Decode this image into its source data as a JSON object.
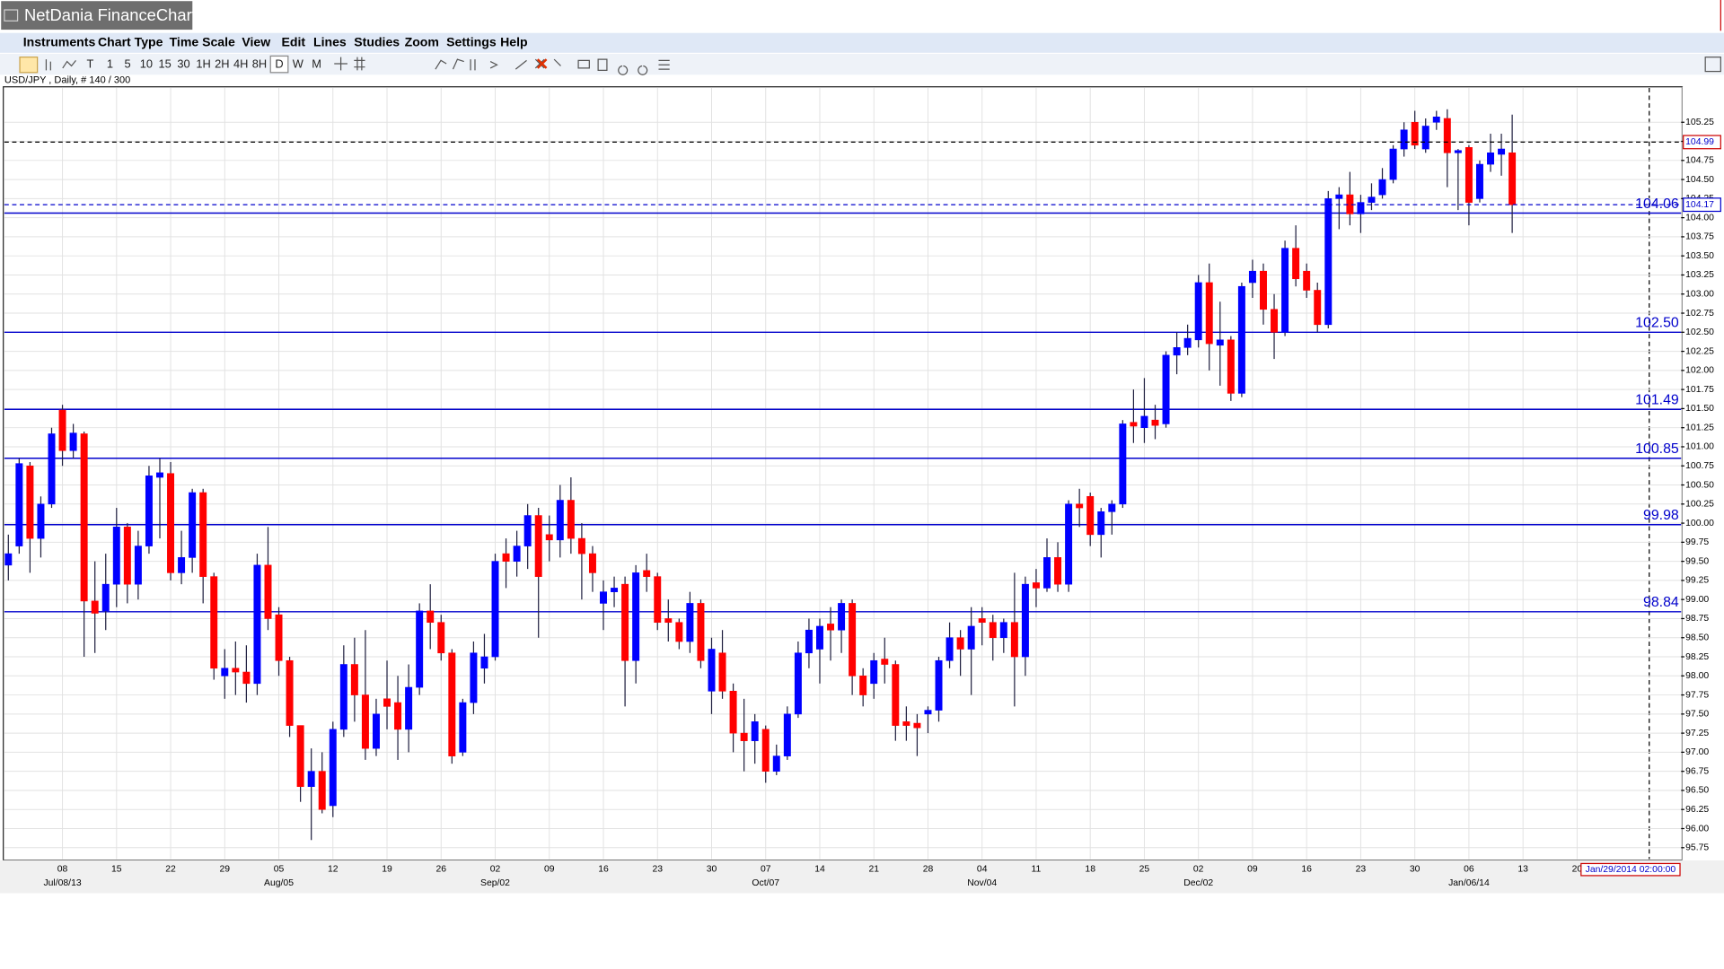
{
  "window": {
    "title": "NetDania FinanceChart"
  },
  "menu": [
    "Instruments",
    "Chart Type",
    "Time Scale",
    "View",
    "Edit",
    "Lines",
    "Studies",
    "Zoom",
    "Settings",
    "Help"
  ],
  "toolbar": [
    "T",
    "1",
    "5",
    "10",
    "15",
    "30",
    "1H",
    "2H",
    "4H",
    "8H",
    "D",
    "W",
    "M"
  ],
  "chart_data": {
    "type": "candlestick",
    "title": "USD/JPY , Daily, # 140 / 300",
    "up_color": "#0000ff",
    "down_color": "#ff0000",
    "categories": [
      null,
      null,
      null,
      null,
      null,
      "08",
      null,
      null,
      null,
      null,
      "15",
      null,
      null,
      null,
      null,
      "22",
      null,
      null,
      null,
      null,
      "29",
      null,
      null,
      null,
      null,
      "05",
      null,
      null,
      null,
      null,
      "12",
      null,
      null,
      null,
      null,
      "19",
      null,
      null,
      null,
      null,
      "26",
      null,
      null,
      null,
      null,
      "02",
      null,
      null,
      null,
      null,
      "09",
      null,
      null,
      null,
      null,
      "16",
      null,
      null,
      null,
      null,
      "23",
      null,
      null,
      null,
      null,
      "30",
      null,
      null,
      null,
      null,
      "07",
      null,
      null,
      null,
      null,
      "14",
      null,
      null,
      null,
      null,
      "21",
      null,
      null,
      null,
      null,
      "28",
      null,
      null,
      null,
      null,
      "04",
      null,
      null,
      null,
      null,
      "11",
      null,
      null,
      null,
      null,
      "18",
      null,
      null,
      null,
      null,
      "25",
      null,
      null,
      null,
      null,
      "02",
      null,
      null,
      null,
      null,
      "09",
      null,
      null,
      null,
      null,
      "16",
      null,
      null,
      null,
      null,
      "23",
      null,
      null,
      null,
      null,
      "30",
      null,
      null,
      null,
      null,
      "06",
      null,
      null,
      null,
      null
    ],
    "month_labels": [
      null,
      null,
      null,
      null,
      null,
      "Jul/08/13",
      null,
      null,
      null,
      null,
      null,
      null,
      null,
      null,
      null,
      null,
      null,
      null,
      null,
      null,
      null,
      null,
      null,
      null,
      null,
      "Aug/05",
      null,
      null,
      null,
      null,
      null,
      null,
      null,
      null,
      null,
      null,
      null,
      null,
      null,
      null,
      null,
      null,
      null,
      null,
      null,
      "Sep/02",
      null,
      null,
      null,
      null,
      null,
      null,
      null,
      null,
      null,
      null,
      null,
      null,
      null,
      null,
      null,
      null,
      null,
      null,
      null,
      null,
      null,
      null,
      null,
      null,
      "Oct/07",
      null,
      null,
      null,
      null,
      null,
      null,
      null,
      null,
      null,
      null,
      null,
      null,
      null,
      null,
      null,
      null,
      null,
      null,
      null,
      "Nov/04",
      null,
      null,
      null,
      null,
      null,
      null,
      null,
      null,
      null,
      null,
      null,
      null,
      null,
      null,
      null,
      null,
      null,
      null,
      null,
      "Dec/02",
      null,
      null,
      null,
      null,
      null,
      null,
      null,
      null,
      null,
      null,
      null,
      null,
      null,
      null,
      null,
      null,
      null,
      null,
      null,
      null,
      null,
      null,
      null,
      null,
      "Jan/06/14",
      null,
      null,
      null,
      null
    ],
    "future_labels": [
      "13",
      "20"
    ],
    "open": [
      99.45,
      99.7,
      100.75,
      99.8,
      100.25,
      101.48,
      100.95,
      101.17,
      98.98,
      98.85,
      99.2,
      99.95,
      99.2,
      99.7,
      100.6,
      100.65,
      99.35,
      99.55,
      100.4,
      99.3,
      98.0,
      98.1,
      98.05,
      97.9,
      99.45,
      98.8,
      98.2,
      97.35,
      96.55,
      96.75,
      96.3,
      97.3,
      98.15,
      97.75,
      97.05,
      97.7,
      97.65,
      97.3,
      97.85,
      98.85,
      98.7,
      98.3,
      97.0,
      97.65,
      98.1,
      98.25,
      99.6,
      99.5,
      99.7,
      100.1,
      99.85,
      99.78,
      100.3,
      99.8,
      99.6,
      98.95,
      99.1,
      99.2,
      98.2,
      99.38,
      99.3,
      98.75,
      98.7,
      98.45,
      98.95,
      97.8,
      98.3,
      97.8,
      97.25,
      97.15,
      97.3,
      96.75,
      96.95,
      97.5,
      98.3,
      98.35,
      98.68,
      98.6,
      98.95,
      98.0,
      97.9,
      98.22,
      98.15,
      97.4,
      97.38,
      97.5,
      97.55,
      98.2,
      98.5,
      98.35,
      98.75,
      98.7,
      98.5,
      98.7,
      98.25,
      99.22,
      99.15,
      99.55,
      99.2,
      100.25,
      100.35,
      99.85,
      100.15,
      100.25,
      101.32,
      101.25,
      101.35,
      101.3,
      102.2,
      102.3,
      102.4,
      103.15,
      102.33,
      102.4,
      101.7,
      103.15,
      103.3,
      102.8,
      102.5,
      103.6,
      103.3,
      103.05,
      102.6,
      104.25,
      104.3,
      104.05,
      104.2,
      104.3,
      104.5,
      104.9,
      105.25,
      104.9,
      105.25,
      105.3,
      104.85,
      104.92,
      104.25,
      104.7,
      104.83,
      104.85
    ],
    "high": [
      99.85,
      100.85,
      100.8,
      100.35,
      101.25,
      101.55,
      101.3,
      101.2,
      99.5,
      99.6,
      100.2,
      100.0,
      99.9,
      100.75,
      100.85,
      100.8,
      99.9,
      100.45,
      100.45,
      99.35,
      98.35,
      98.45,
      98.4,
      99.6,
      99.95,
      98.9,
      98.25,
      97.35,
      97.05,
      97.0,
      97.4,
      98.4,
      98.5,
      98.6,
      97.7,
      98.2,
      98.0,
      98.15,
      98.95,
      99.2,
      98.8,
      98.35,
      97.7,
      98.45,
      98.55,
      99.6,
      99.8,
      99.9,
      100.25,
      100.2,
      100.1,
      100.5,
      100.6,
      100.0,
      99.7,
      99.25,
      99.3,
      99.3,
      99.45,
      99.6,
      99.35,
      99.0,
      98.75,
      99.1,
      99.0,
      98.5,
      98.6,
      97.9,
      97.7,
      97.5,
      97.35,
      97.1,
      97.6,
      98.45,
      98.75,
      98.75,
      98.9,
      99.0,
      99.0,
      98.1,
      98.3,
      98.5,
      98.2,
      97.6,
      97.5,
      97.6,
      98.25,
      98.7,
      98.6,
      98.9,
      98.9,
      98.8,
      98.75,
      99.35,
      99.3,
      99.4,
      99.8,
      99.75,
      100.3,
      100.45,
      100.4,
      100.2,
      100.3,
      101.35,
      101.75,
      101.9,
      101.55,
      102.25,
      102.5,
      102.6,
      103.25,
      103.4,
      102.9,
      102.45,
      103.15,
      103.45,
      103.4,
      103.0,
      103.7,
      103.9,
      103.4,
      103.15,
      104.35,
      104.4,
      104.6,
      104.3,
      104.45,
      104.65,
      104.95,
      105.25,
      105.4,
      105.3,
      105.4,
      105.42,
      104.9,
      104.95,
      104.75,
      105.1,
      105.1,
      105.35
    ],
    "low": [
      99.25,
      99.6,
      99.35,
      99.55,
      100.2,
      100.75,
      100.85,
      98.25,
      98.3,
      98.6,
      98.9,
      98.95,
      99.0,
      99.6,
      99.8,
      99.25,
      99.2,
      99.35,
      98.95,
      97.95,
      97.7,
      97.75,
      97.65,
      97.75,
      98.6,
      98.0,
      97.2,
      96.35,
      95.85,
      96.2,
      96.15,
      97.2,
      97.4,
      96.9,
      96.95,
      97.3,
      96.9,
      97.0,
      97.75,
      98.35,
      98.2,
      96.85,
      96.95,
      97.5,
      97.9,
      98.2,
      99.15,
      99.3,
      99.4,
      98.5,
      99.5,
      99.55,
      99.6,
      99.0,
      99.1,
      98.6,
      98.9,
      97.6,
      97.9,
      99.1,
      98.6,
      98.45,
      98.35,
      98.3,
      98.1,
      97.5,
      97.7,
      97.0,
      96.75,
      96.85,
      96.6,
      96.7,
      96.9,
      97.45,
      98.1,
      97.9,
      98.2,
      98.3,
      97.75,
      97.6,
      97.7,
      97.9,
      97.15,
      97.15,
      96.95,
      97.25,
      97.4,
      98.1,
      98.0,
      97.75,
      98.4,
      98.2,
      98.3,
      97.6,
      98.0,
      98.9,
      99.1,
      99.1,
      99.1,
      99.95,
      99.7,
      99.55,
      99.85,
      100.2,
      101.05,
      101.05,
      101.1,
      101.25,
      101.95,
      102.2,
      102.3,
      102.0,
      101.8,
      101.6,
      101.65,
      102.95,
      102.6,
      102.15,
      102.45,
      103.1,
      102.95,
      102.5,
      102.55,
      103.85,
      103.9,
      103.8,
      104.1,
      104.25,
      104.45,
      104.8,
      104.9,
      104.85,
      105.15,
      104.4,
      104.1,
      103.9,
      104.2,
      104.6,
      104.55,
      103.8
    ],
    "close": [
      99.6,
      100.78,
      99.8,
      100.25,
      101.17,
      100.95,
      101.18,
      98.98,
      98.82,
      99.2,
      99.95,
      99.2,
      99.7,
      100.62,
      100.66,
      99.35,
      99.55,
      100.4,
      99.3,
      98.1,
      98.1,
      98.05,
      97.9,
      99.45,
      98.75,
      98.2,
      97.35,
      96.55,
      96.75,
      96.25,
      97.3,
      98.15,
      97.75,
      97.05,
      97.5,
      97.6,
      97.3,
      97.85,
      98.85,
      98.7,
      98.3,
      96.95,
      97.65,
      98.3,
      98.25,
      99.5,
      99.5,
      99.7,
      100.1,
      99.3,
      99.78,
      100.3,
      99.8,
      99.6,
      99.35,
      99.1,
      99.15,
      98.2,
      99.35,
      99.3,
      98.7,
      98.7,
      98.45,
      98.95,
      98.2,
      98.35,
      97.8,
      97.25,
      97.15,
      97.4,
      96.75,
      96.95,
      97.5,
      98.3,
      98.6,
      98.65,
      98.6,
      98.95,
      98.0,
      97.75,
      98.2,
      98.15,
      97.35,
      97.35,
      97.32,
      97.55,
      98.2,
      98.5,
      98.35,
      98.65,
      98.7,
      98.5,
      98.7,
      98.25,
      99.2,
      99.15,
      99.55,
      99.2,
      100.25,
      100.2,
      99.85,
      100.15,
      100.25,
      101.3,
      101.27,
      101.4,
      101.28,
      102.2,
      102.3,
      102.42,
      103.15,
      102.35,
      102.4,
      101.7,
      103.1,
      103.3,
      102.8,
      102.5,
      103.6,
      103.2,
      103.05,
      102.6,
      104.25,
      104.3,
      104.05,
      104.2,
      104.27,
      104.5,
      104.9,
      105.15,
      104.95,
      105.2,
      105.32,
      104.85,
      104.88,
      104.2,
      104.7,
      104.85,
      104.9,
      104.17
    ],
    "ylim": [
      95.6,
      105.7
    ],
    "yticks": [
      {
        "value": 95.75,
        "label": "95.75"
      },
      {
        "value": 96,
        "label": "96.00"
      },
      {
        "value": 96.25,
        "label": "96.25"
      },
      {
        "value": 96.5,
        "label": "96.50"
      },
      {
        "value": 96.75,
        "label": "96.75"
      },
      {
        "value": 97,
        "label": "97.00"
      },
      {
        "value": 97.25,
        "label": "97.25"
      },
      {
        "value": 97.5,
        "label": "97.50"
      },
      {
        "value": 97.75,
        "label": "97.75"
      },
      {
        "value": 98,
        "label": "98.00"
      },
      {
        "value": 98.25,
        "label": "98.25"
      },
      {
        "value": 98.5,
        "label": "98.50"
      },
      {
        "value": 98.75,
        "label": "98.75"
      },
      {
        "value": 99,
        "label": "99.00"
      },
      {
        "value": 99.25,
        "label": "99.25"
      },
      {
        "value": 99.5,
        "label": "99.50"
      },
      {
        "value": 99.75,
        "label": "99.75"
      },
      {
        "value": 100,
        "label": "100.00"
      },
      {
        "value": 100.25,
        "label": "100.25"
      },
      {
        "value": 100.5,
        "label": "100.50"
      },
      {
        "value": 100.75,
        "label": "100.75"
      },
      {
        "value": 101,
        "label": "101.00"
      },
      {
        "value": 101.25,
        "label": "101.25"
      },
      {
        "value": 101.5,
        "label": "101.50"
      },
      {
        "value": 101.75,
        "label": "101.75"
      },
      {
        "value": 102,
        "label": "102.00"
      },
      {
        "value": 102.25,
        "label": "102.25"
      },
      {
        "value": 102.5,
        "label": "102.50"
      },
      {
        "value": 102.75,
        "label": "102.75"
      },
      {
        "value": 103,
        "label": "103.00"
      },
      {
        "value": 103.25,
        "label": "103.25"
      },
      {
        "value": 103.5,
        "label": "103.50"
      },
      {
        "value": 103.75,
        "label": "103.75"
      },
      {
        "value": 104,
        "label": "104.00"
      },
      {
        "value": 104.25,
        "label": "104.25"
      },
      {
        "value": 104.5,
        "label": "104.50"
      },
      {
        "value": 104.75,
        "label": "104.75"
      },
      {
        "value": 105,
        "label": "105.00"
      },
      {
        "value": 105.25,
        "label": "105.25"
      }
    ],
    "grid": true,
    "levels": [
      104.06,
      102.5,
      101.49,
      100.85,
      99.98,
      98.84
    ],
    "level_labels": [
      "104.06",
      "102.50",
      "101.49",
      "100.85",
      "99.98",
      "98.84"
    ],
    "level_color": "#0000cc",
    "last_price": 104.17,
    "crosshair_price": 104.99,
    "crosshair_time": "Jan/29/2014 02:00:00"
  }
}
